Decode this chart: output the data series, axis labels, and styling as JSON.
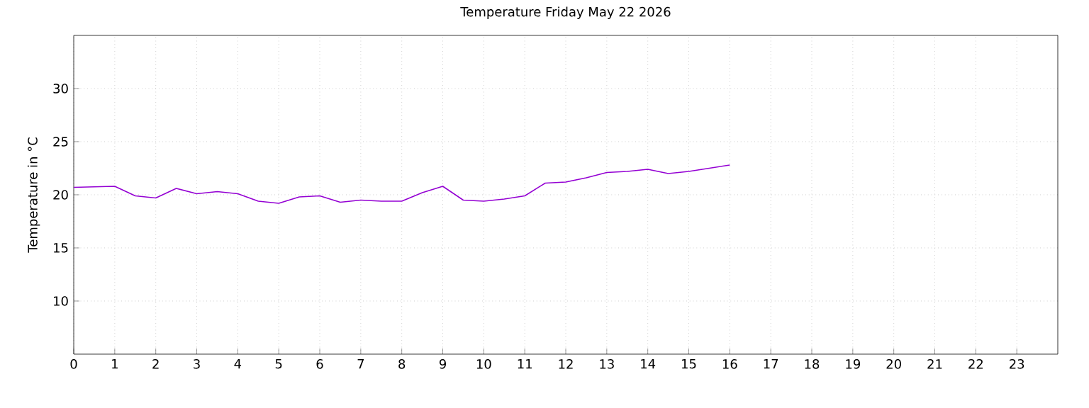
{
  "chart_data": {
    "type": "line",
    "title": "Temperature Friday May 22 2026",
    "ylabel": "Temperature in °C",
    "x": [
      0,
      1,
      1.5,
      2,
      2.5,
      3,
      3.5,
      4,
      4.5,
      5,
      5.5,
      6,
      6.5,
      7,
      7.5,
      8,
      8.5,
      9,
      9.5,
      10,
      10.5,
      11,
      11.5,
      12,
      12.5,
      13,
      13.5,
      14,
      14.5,
      15,
      15.5,
      16
    ],
    "series": [
      {
        "color": "#9400d3",
        "values": [
          20.7,
          20.8,
          19.9,
          19.7,
          20.6,
          20.1,
          20.3,
          20.1,
          19.4,
          19.2,
          19.8,
          19.9,
          19.3,
          19.5,
          19.4,
          19.4,
          20.2,
          20.8,
          19.5,
          19.4,
          19.6,
          19.9,
          21.1,
          21.2,
          21.6,
          22.1,
          22.2,
          22.4,
          22.0,
          22.2,
          22.5,
          22.8
        ]
      }
    ],
    "xlim": [
      0,
      24
    ],
    "ylim": [
      5,
      35
    ],
    "xticks": [
      0,
      1,
      2,
      3,
      4,
      5,
      6,
      7,
      8,
      9,
      10,
      11,
      12,
      13,
      14,
      15,
      16,
      17,
      18,
      19,
      20,
      21,
      22,
      23
    ],
    "yticks": [
      10,
      15,
      20,
      25,
      30
    ],
    "grid": true,
    "marker": "none",
    "line_style": "solid"
  }
}
